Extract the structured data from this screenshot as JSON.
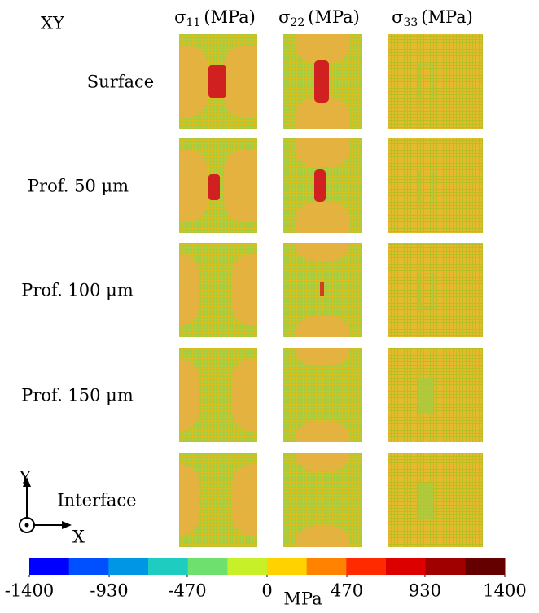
{
  "figure": {
    "view": "XY",
    "columns": [
      {
        "symbol": "σ",
        "subscript": "11",
        "unit": "(MPa)"
      },
      {
        "symbol": "σ",
        "subscript": "22",
        "unit": "(MPa)"
      },
      {
        "symbol": "σ",
        "subscript": "33",
        "unit": "(MPa)"
      }
    ],
    "rows": [
      "Surface",
      "Prof. 50 μm",
      "Prof. 100 μm",
      "Prof. 150 μm",
      "Interface"
    ],
    "axes": {
      "vertical": "Y",
      "horizontal": "X"
    },
    "colorbar": {
      "unit": "MPa",
      "clim": [
        -1400,
        1400
      ],
      "ticks": [
        -1400,
        -930,
        -470,
        0,
        470,
        930,
        1400
      ],
      "colors": [
        "#0000ff",
        "#0050ff",
        "#0096e6",
        "#1ecdc0",
        "#6ee06e",
        "#c8f028",
        "#ffd200",
        "#ff8200",
        "#ff2a00",
        "#dc0000",
        "#a00000",
        "#640000"
      ]
    }
  }
}
